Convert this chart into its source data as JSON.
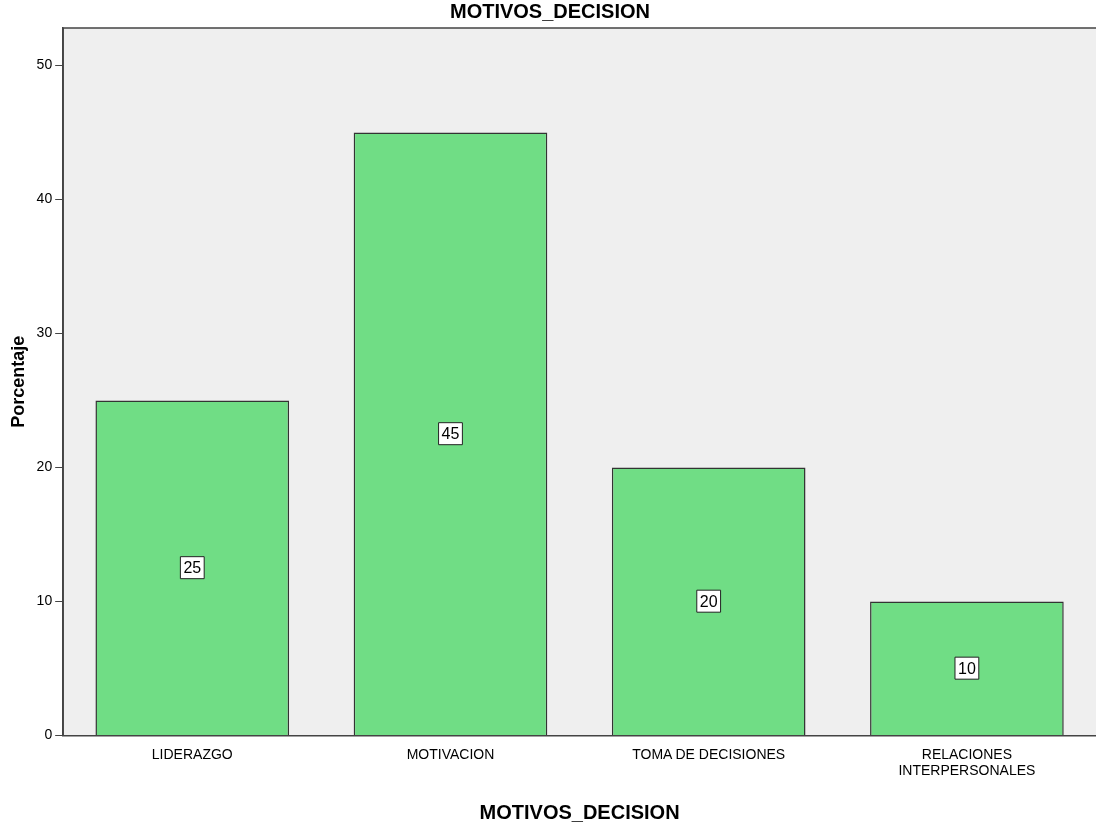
{
  "chart_data": {
    "type": "bar",
    "title": "MOTIVOS_DECISION",
    "xlabel": "MOTIVOS_DECISION",
    "ylabel": "Porcentaje",
    "categories": [
      "LIDERAZGO",
      "MOTIVACION",
      "TOMA DE DECISIONES",
      "RELACIONES INTERPERSONALES"
    ],
    "values": [
      25,
      45,
      20,
      10
    ],
    "color": "#70dd85",
    "ylim": [
      0,
      52.8
    ],
    "yticks": [
      0,
      10,
      20,
      30,
      40,
      50
    ],
    "grid": false,
    "legend": false,
    "data_labels": true
  }
}
